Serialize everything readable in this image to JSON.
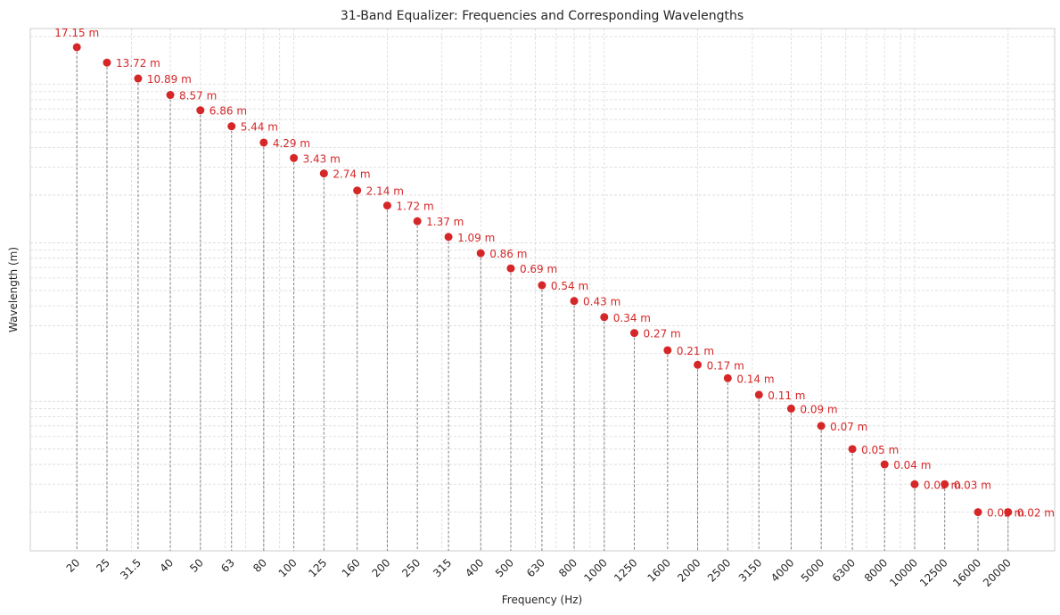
{
  "chart_data": {
    "type": "scatter",
    "title": "31-Band Equalizer: Frequencies and Corresponding Wavelengths",
    "xlabel": "Frequency (Hz)",
    "ylabel": "Wavelength (m)",
    "yscale": "log",
    "grid": true,
    "legend": "none",
    "marker_color": "#d62728",
    "stem_color": "#808080",
    "x": [
      "20",
      "25",
      "31.5",
      "40",
      "50",
      "63",
      "80",
      "100",
      "125",
      "160",
      "200",
      "250",
      "315",
      "400",
      "500",
      "630",
      "800",
      "1000",
      "1250",
      "1600",
      "2000",
      "2500",
      "3150",
      "4000",
      "5000",
      "6300",
      "8000",
      "10000",
      "12500",
      "16000",
      "20000"
    ],
    "y": [
      17.15,
      13.72,
      10.89,
      8.57,
      6.86,
      5.44,
      4.29,
      3.43,
      2.74,
      2.14,
      1.72,
      1.37,
      1.09,
      0.86,
      0.69,
      0.54,
      0.43,
      0.34,
      0.27,
      0.21,
      0.17,
      0.14,
      0.11,
      0.09,
      0.07,
      0.05,
      0.04,
      0.03,
      0.03,
      0.02,
      0.02
    ],
    "labels": [
      "17.15 m",
      "13.72 m",
      "10.89 m",
      "8.57 m",
      "6.86 m",
      "5.44 m",
      "4.29 m",
      "3.43 m",
      "2.74 m",
      "2.14 m",
      "1.72 m",
      "1.37 m",
      "1.09 m",
      "0.86 m",
      "0.69 m",
      "0.54 m",
      "0.43 m",
      "0.34 m",
      "0.27 m",
      "0.21 m",
      "0.17 m",
      "0.14 m",
      "0.11 m",
      "0.09 m",
      "0.07 m",
      "0.05 m",
      "0.04 m",
      "0.03 m",
      "0.03 m",
      "0.02 m",
      "0.02 m"
    ]
  }
}
